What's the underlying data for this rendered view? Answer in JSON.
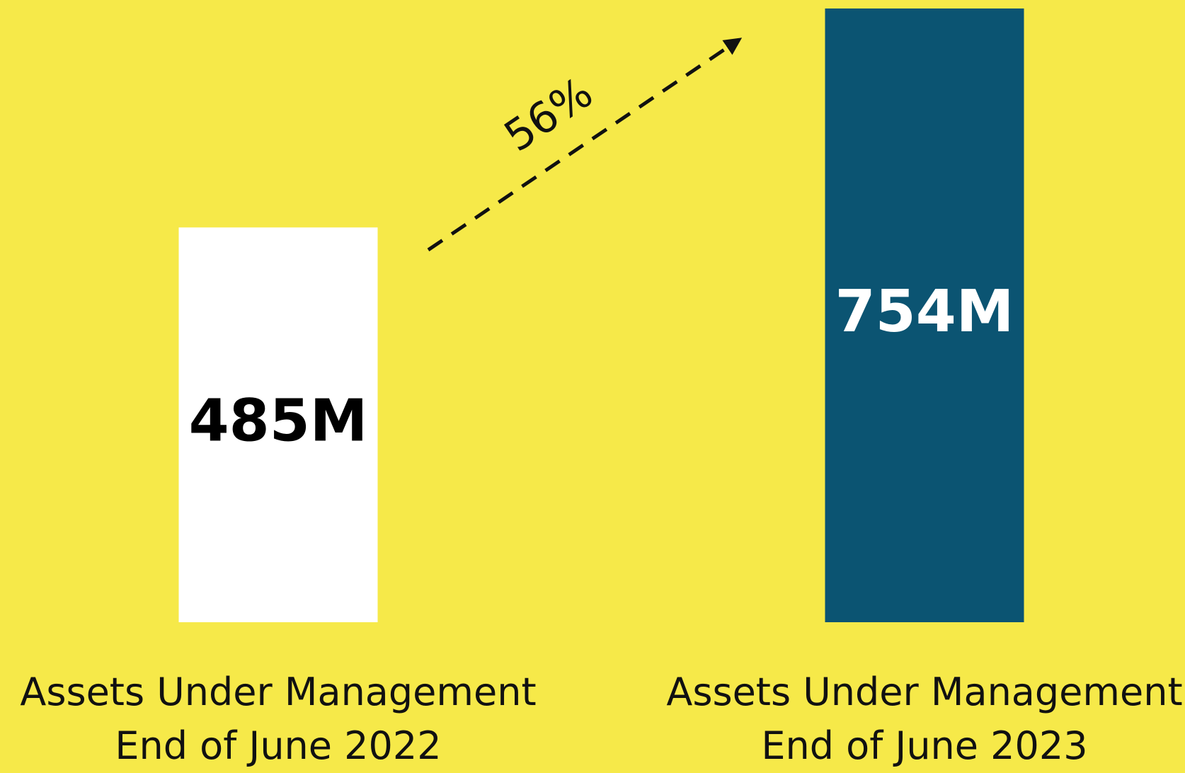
{
  "chart_data": {
    "type": "bar",
    "categories": [
      "Assets Under Management\nEnd of June 2022",
      "Assets Under Management\nEnd of June 2023"
    ],
    "values": [
      485,
      754
    ],
    "value_labels": [
      "485M",
      "754M"
    ],
    "colors": [
      "#ffffff",
      "#0b5472"
    ],
    "value_label_colors": [
      "#000000",
      "#ffffff"
    ],
    "annotation": "56%"
  }
}
